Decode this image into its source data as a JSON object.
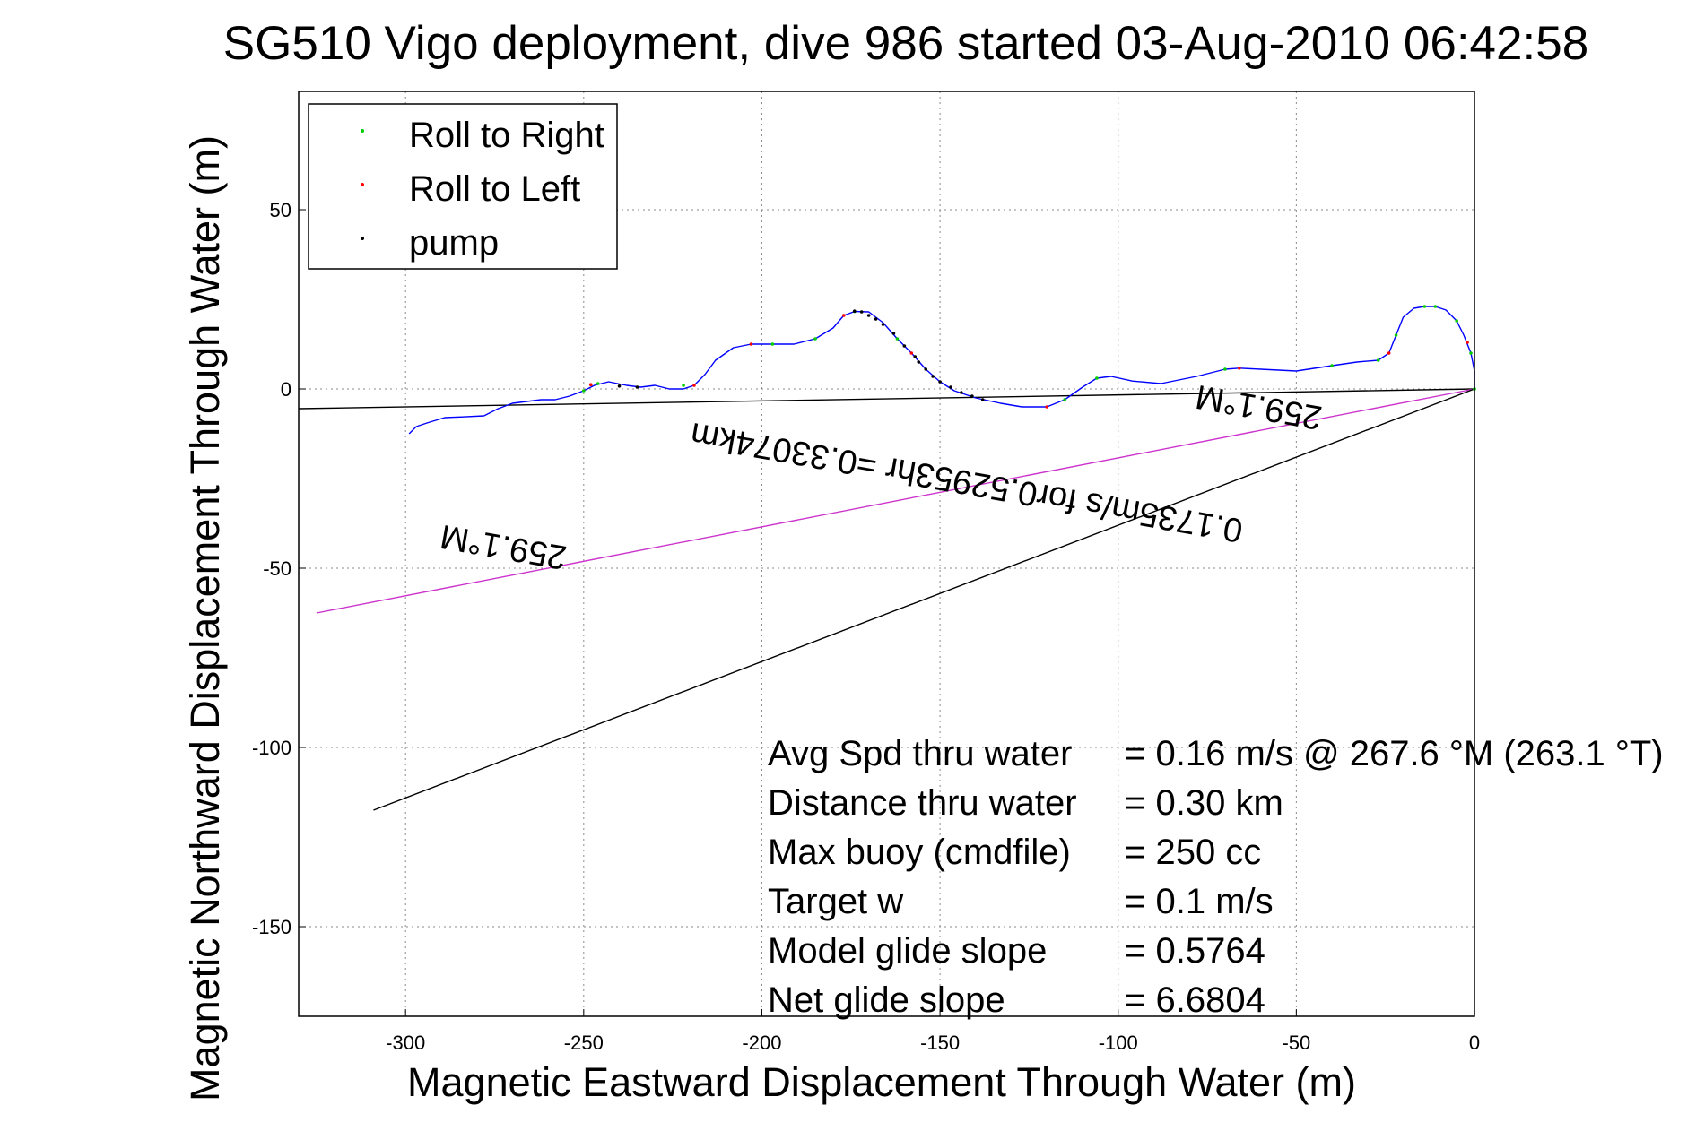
{
  "chart_data": {
    "type": "line",
    "title": "SG510 Vigo deployment, dive 986 started 03-Aug-2010 06:42:58",
    "xlabel": "Magnetic Eastward Displacement Through Water (m)",
    "ylabel": "Magnetic Northward Displacement Through Water (m)",
    "xlim": [
      -330,
      0
    ],
    "ylim": [
      -175,
      83
    ],
    "grid": true,
    "legend_position": "top-left",
    "xticks": [
      -300,
      -250,
      -200,
      -150,
      -100,
      -50,
      0
    ],
    "yticks": [
      50,
      0,
      -50,
      -100,
      -150
    ],
    "xtick_labels": [
      "-300",
      "-250",
      "-200",
      "-150",
      "-100",
      "-50",
      "0"
    ],
    "ytick_labels": [
      "50",
      "0",
      "-50",
      "-100",
      "-150"
    ],
    "legend": [
      {
        "label": "Roll to Right",
        "color": "#00cc00"
      },
      {
        "label": "Roll to Left",
        "color": "#ff0000"
      },
      {
        "label": "pump",
        "color": "#000000"
      }
    ],
    "track": {
      "color": "#0000ff",
      "x": [
        0,
        0,
        -1,
        -3,
        -5,
        -8,
        -11,
        -14,
        -17,
        -20,
        -22,
        -24,
        -27,
        -33,
        -40,
        -50,
        -60,
        -66,
        -70,
        -78,
        -88,
        -96,
        -102,
        -106,
        -110,
        -115,
        -120,
        -127,
        -133,
        -140,
        -146,
        -150,
        -154,
        -158,
        -162,
        -166,
        -170,
        -174,
        -177,
        -180,
        -185,
        -191,
        -197,
        -203,
        -208,
        -213,
        -216,
        -219,
        -222,
        -226,
        -230,
        -234,
        -238,
        -243,
        -247,
        -250,
        -254,
        -258,
        -262,
        -266,
        -270,
        -274,
        -278,
        -284,
        -289,
        -294,
        -297,
        -299
      ],
      "y": [
        0,
        5,
        10,
        15,
        19,
        22,
        23,
        23,
        22.5,
        20,
        15,
        10,
        8,
        7.5,
        6.5,
        5,
        5.5,
        5.8,
        5.5,
        3.5,
        1.5,
        2.2,
        3.5,
        3,
        0.5,
        -3,
        -5,
        -5,
        -4,
        -2.5,
        -0.5,
        2,
        5.5,
        10,
        14,
        18.5,
        21.5,
        21.6,
        20.5,
        17,
        14,
        12.5,
        12.5,
        12.5,
        11.5,
        8,
        4,
        1,
        0,
        0,
        1,
        0.5,
        1,
        2,
        1,
        -0.5,
        -2,
        -3,
        -3,
        -3.5,
        -4,
        -5.5,
        -7.5,
        -7.8,
        -8,
        -9.5,
        -10.5,
        -12.5
      ]
    },
    "markers_right": {
      "x": [
        0,
        -1,
        -5,
        -11,
        -14,
        -22,
        -27,
        -40,
        -70,
        -106,
        -115,
        -162,
        -174,
        -185,
        -197,
        -222,
        -246,
        -250
      ],
      "y": [
        0,
        10,
        19,
        23,
        23,
        15,
        8,
        6.5,
        5.5,
        3,
        -3,
        14,
        21.6,
        14,
        12.5,
        1,
        1.5,
        -0.5
      ]
    },
    "markers_left": {
      "x": [
        -2,
        -24,
        -66,
        -120,
        -158,
        -177,
        -203,
        -219,
        -248
      ],
      "y": [
        13,
        10,
        5.8,
        -5,
        10,
        20.5,
        12.5,
        1,
        1.2
      ]
    },
    "markers_pump": {
      "x": [
        -150,
        -152,
        -154,
        -156,
        -157,
        -160,
        -163,
        -166,
        -168,
        -170,
        -172,
        -174,
        -147,
        -144,
        -141,
        -138,
        -235,
        -240
      ],
      "y": [
        2,
        3.5,
        5.5,
        7.5,
        9,
        12,
        15.5,
        18,
        19.5,
        20.5,
        21.5,
        21.7,
        0.5,
        -1,
        -2,
        -3,
        0.5,
        0.8
      ]
    },
    "lines": [
      {
        "color": "#000000",
        "x": [
          0,
          -330
        ],
        "y": [
          0,
          -5.5
        ]
      },
      {
        "color": "#cc33cc",
        "x": [
          0,
          -325
        ],
        "y": [
          0,
          -62.5
        ]
      },
      {
        "color": "#000000",
        "x": [
          0,
          -309
        ],
        "y": [
          0,
          -117.5
        ]
      }
    ],
    "annotations": [
      {
        "text": "259.1°M",
        "x": -272,
        "y": -41,
        "angle": 190
      },
      {
        "text": "259.1°M",
        "x": -60,
        "y": -2,
        "angle": 190
      },
      {
        "text": "0.1735m/s for0.52953hr =0.33074km",
        "x": -142,
        "y": -23,
        "angle": 190
      }
    ],
    "stats": [
      {
        "label": "Avg Spd thru water",
        "value": "=  0.16 m/s @ 267.6 °M (263.1 °T)"
      },
      {
        "label": "Distance thru water",
        "value": "=  0.30 km"
      },
      {
        "label": "Max buoy (cmdfile)",
        "value": "= 250 cc"
      },
      {
        "label": "Target w",
        "value": "= 0.1 m/s"
      },
      {
        "label": "Model glide slope",
        "value": "= 0.5764"
      },
      {
        "label": "Net glide slope",
        "value": "= 6.6804"
      }
    ]
  }
}
